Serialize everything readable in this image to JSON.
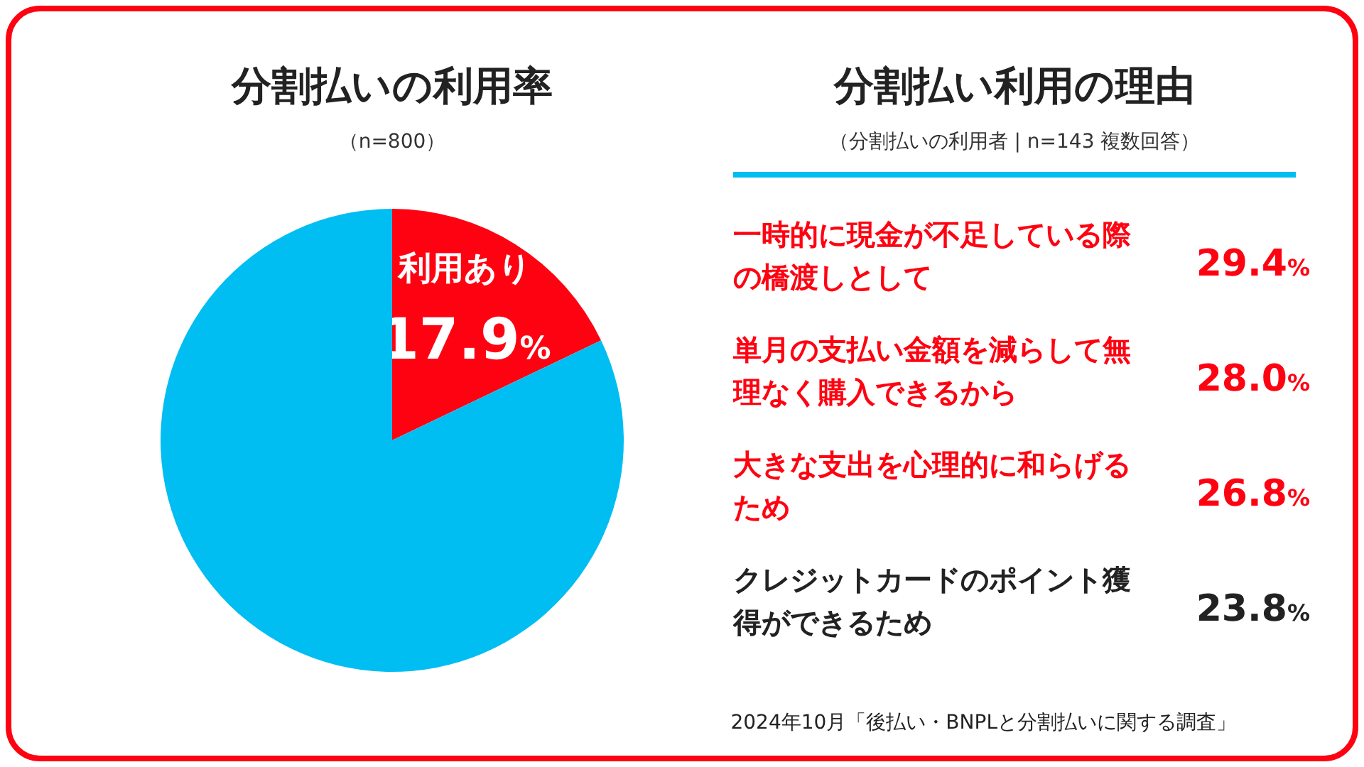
{
  "chart_data": [
    {
      "type": "pie",
      "title": "分割払いの利用率",
      "subtitle": "（n=800）",
      "categories": [
        "利用あり",
        null
      ],
      "values": [
        17.9,
        82.1
      ],
      "colors": [
        "#ff0211",
        "#00bdf2"
      ],
      "value_labels": [
        "17.9%",
        null
      ]
    },
    {
      "type": "other",
      "title": "分割払い利用の理由",
      "subtitle": "（分割払いの利用者 | n=143 複数回答）",
      "categories": [
        "一時的に現金が不足している際の橋渡しとして",
        "単月の支払い金額を減らして無理なく購入できるから",
        "大きな支出を心理的に和らげるため",
        "クレジットカードのポイント獲得ができるため"
      ],
      "colors": [
        "#ff0211",
        "#ff0211",
        "#ff0211",
        "#222222"
      ],
      "value_labels": [
        "29.4%",
        "28.0%",
        "26.8%",
        "23.8%"
      ],
      "annotations": [
        "2024年10月「後払い・BNPLと分割払いに関する調査」"
      ]
    }
  ]
}
